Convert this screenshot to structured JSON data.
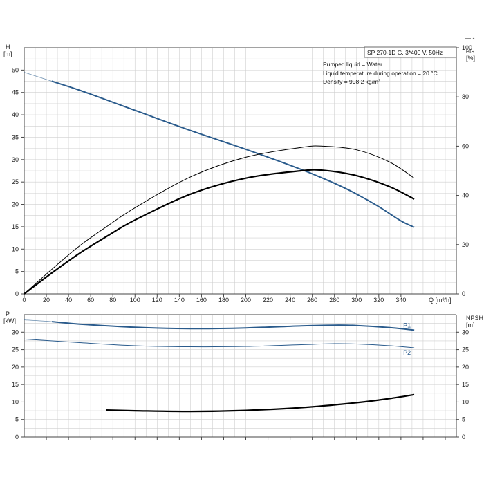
{
  "corner_mark": "— -",
  "info": {
    "model": "SP 270-1D G, 3*400 V, 50Hz",
    "lines": [
      "Pumped liquid = Water",
      "Liquid temperature during operation = 20 °C",
      "Density = 998.2 kg/m³"
    ]
  },
  "colors": {
    "head_curve": "#2a5b8c",
    "eta_curve": "#000000",
    "power_curve": "#2a5b8c",
    "npsh_curve": "#000000",
    "grid": "#cfcfcf",
    "axis": "#444444"
  },
  "chart_data": [
    {
      "type": "line",
      "x": {
        "label": "Q [m³/h]",
        "lim": [
          0,
          390
        ],
        "ticks": [
          0,
          20,
          40,
          60,
          80,
          100,
          120,
          140,
          160,
          180,
          200,
          220,
          240,
          260,
          280,
          300,
          320,
          340
        ]
      },
      "y_left": {
        "label": [
          "H",
          "[m]"
        ],
        "lim": [
          0,
          55
        ],
        "ticks": [
          0,
          5,
          10,
          15,
          20,
          25,
          30,
          35,
          40,
          45,
          50
        ]
      },
      "y_right": {
        "label": [
          "eta",
          "[%]"
        ],
        "lim": [
          0,
          100
        ],
        "ticks": [
          0,
          20,
          40,
          60,
          80,
          100
        ]
      },
      "grid": true,
      "series": [
        {
          "axis": "left",
          "color": "head_curve",
          "width": 2,
          "dashed_to": 25,
          "points": [
            [
              0,
              49.5
            ],
            [
              25,
              47.5
            ],
            [
              50,
              45.5
            ],
            [
              100,
              41
            ],
            [
              150,
              36.5
            ],
            [
              200,
              32.3
            ],
            [
              250,
              27.8
            ],
            [
              280,
              24.7
            ],
            [
              300,
              22.3
            ],
            [
              320,
              19.5
            ],
            [
              340,
              16.3
            ],
            [
              352,
              14.9
            ]
          ]
        },
        {
          "axis": "right",
          "color": "eta_curve",
          "width": 1,
          "points": [
            [
              0,
              0
            ],
            [
              25,
              10
            ],
            [
              50,
              19.5
            ],
            [
              75,
              27.5
            ],
            [
              100,
              35
            ],
            [
              150,
              47.5
            ],
            [
              200,
              55.5
            ],
            [
              250,
              59.5
            ],
            [
              270,
              60
            ],
            [
              300,
              58.5
            ],
            [
              330,
              53.5
            ],
            [
              352,
              47
            ]
          ]
        },
        {
          "axis": "right",
          "color": "eta_curve",
          "width": 2.2,
          "points": [
            [
              0,
              0
            ],
            [
              25,
              8.5
            ],
            [
              50,
              16.5
            ],
            [
              75,
              23.5
            ],
            [
              100,
              30
            ],
            [
              150,
              40.5
            ],
            [
              200,
              47
            ],
            [
              250,
              50
            ],
            [
              270,
              50.2
            ],
            [
              300,
              48
            ],
            [
              330,
              43.5
            ],
            [
              352,
              38.5
            ]
          ]
        }
      ]
    },
    {
      "type": "line",
      "x": {
        "lim": [
          0,
          390
        ]
      },
      "y_left": {
        "label": [
          "P",
          "[kW]"
        ],
        "lim": [
          0,
          35
        ],
        "ticks": [
          0,
          5,
          10,
          15,
          20,
          25,
          30
        ]
      },
      "y_right": {
        "label": [
          "NPSH",
          "[m]"
        ],
        "lim": [
          0,
          35
        ],
        "ticks": [
          0,
          5,
          10,
          15,
          20,
          25,
          30
        ]
      },
      "grid": true,
      "series": [
        {
          "name": "P1",
          "axis": "left",
          "color": "power_curve",
          "width": 2,
          "dashed_to": 25,
          "points": [
            [
              0,
              33.5
            ],
            [
              25,
              33
            ],
            [
              50,
              32.3
            ],
            [
              100,
              31.4
            ],
            [
              150,
              31
            ],
            [
              200,
              31.2
            ],
            [
              250,
              31.8
            ],
            [
              280,
              32
            ],
            [
              300,
              31.9
            ],
            [
              330,
              31.3
            ],
            [
              352,
              30.6
            ]
          ]
        },
        {
          "name": "P2",
          "axis": "left",
          "color": "power_curve",
          "width": 1,
          "points": [
            [
              0,
              28
            ],
            [
              50,
              27
            ],
            [
              100,
              26.1
            ],
            [
              150,
              25.8
            ],
            [
              200,
              25.9
            ],
            [
              250,
              26.4
            ],
            [
              280,
              26.7
            ],
            [
              300,
              26.6
            ],
            [
              330,
              26.1
            ],
            [
              352,
              25.5
            ]
          ]
        },
        {
          "axis": "right",
          "color": "npsh_curve",
          "width": 2.2,
          "points": [
            [
              74,
              7.7
            ],
            [
              100,
              7.5
            ],
            [
              150,
              7.3
            ],
            [
              200,
              7.6
            ],
            [
              250,
              8.4
            ],
            [
              300,
              9.8
            ],
            [
              330,
              11
            ],
            [
              352,
              12.1
            ]
          ]
        }
      ]
    }
  ]
}
